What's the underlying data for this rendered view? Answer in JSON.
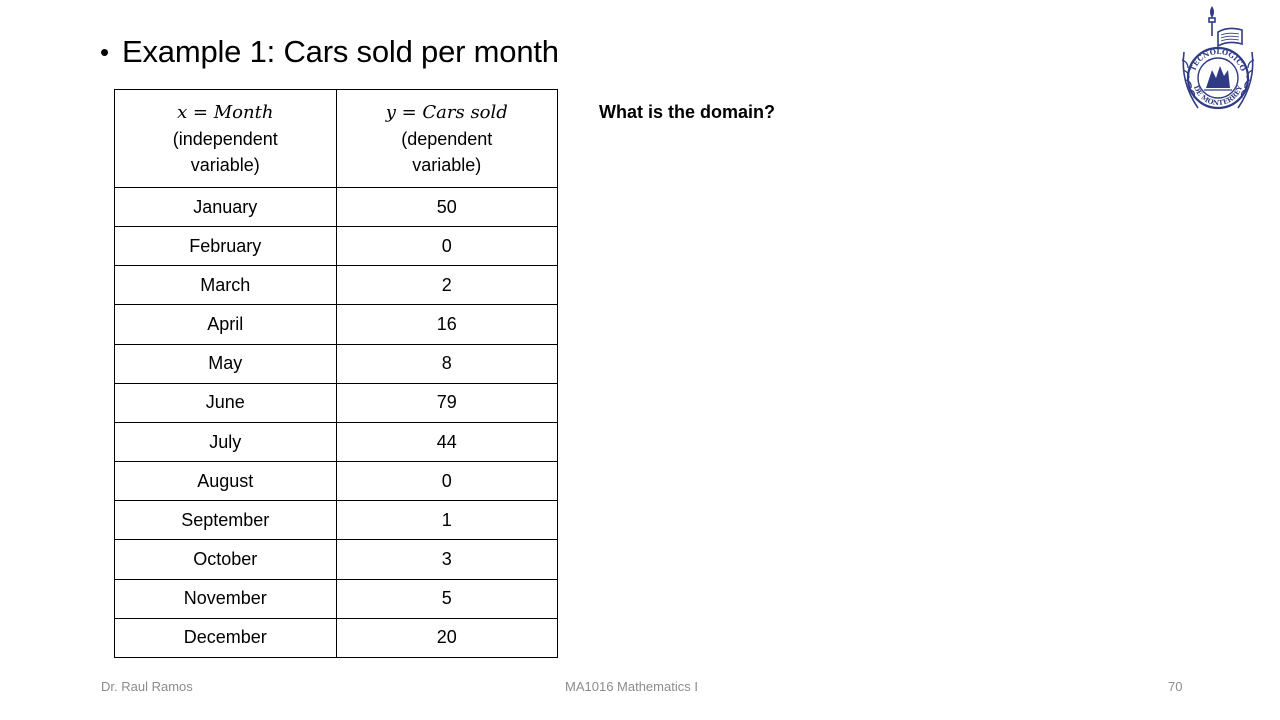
{
  "slide": {
    "bullet": "•",
    "title": "Example 1: Cars sold per month",
    "question": "What is the domain?"
  },
  "table": {
    "x_header_math": "x = Month",
    "x_header_desc": "(independent variable)",
    "y_header_math": "y = Cars sold",
    "y_header_desc": "(dependent variable)",
    "rows": [
      {
        "month": "January",
        "cars": "50"
      },
      {
        "month": "February",
        "cars": "0"
      },
      {
        "month": "March",
        "cars": "2"
      },
      {
        "month": "April",
        "cars": "16"
      },
      {
        "month": "May",
        "cars": "8"
      },
      {
        "month": "June",
        "cars": "79"
      },
      {
        "month": "July",
        "cars": "44"
      },
      {
        "month": "August",
        "cars": "0"
      },
      {
        "month": "September",
        "cars": "1"
      },
      {
        "month": "October",
        "cars": "3"
      },
      {
        "month": "November",
        "cars": "5"
      },
      {
        "month": "December",
        "cars": "20"
      }
    ]
  },
  "logo": {
    "icon": "university-seal-icon",
    "color": "#2f3b84",
    "top_text": "TECNOLOGICO",
    "bottom_text": "DE MONTERREY"
  },
  "footer": {
    "author": "Dr. Raul Ramos",
    "course": "MA1016 Mathematics I",
    "page": "70"
  },
  "colors": {
    "footer_text": "#8c8c8c",
    "table_border": "#000000"
  }
}
